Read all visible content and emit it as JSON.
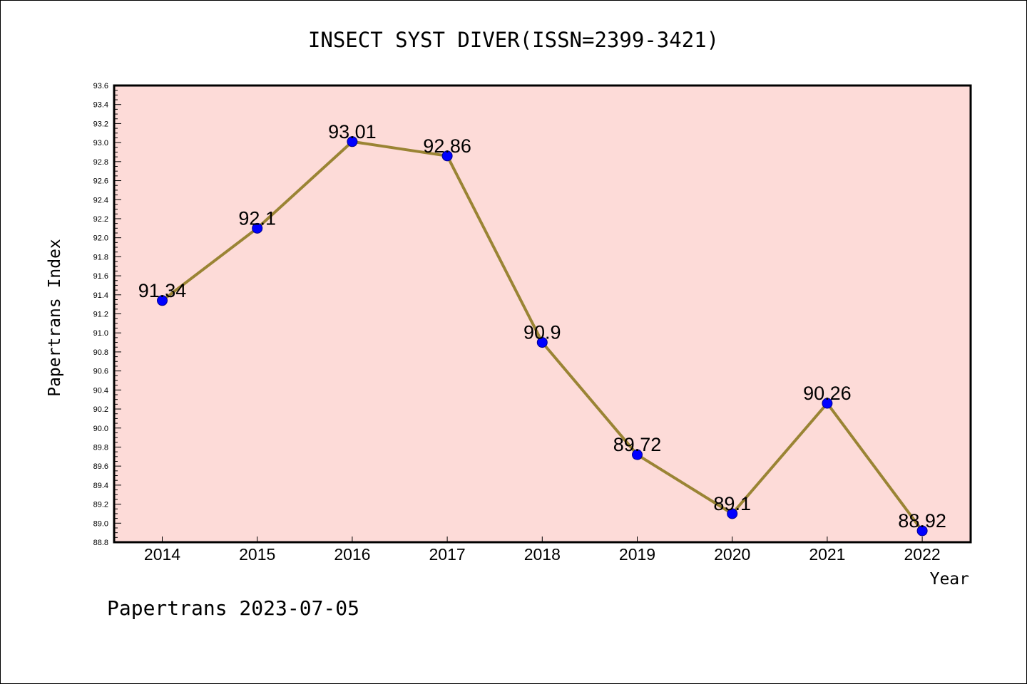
{
  "chart_data": {
    "type": "line",
    "title": "INSECT SYST DIVER(ISSN=2399-3421)",
    "xlabel": "Year",
    "ylabel": "Papertrans Index",
    "categories": [
      "2014",
      "2015",
      "2016",
      "2017",
      "2018",
      "2019",
      "2020",
      "2021",
      "2022"
    ],
    "series": [
      {
        "values": [
          91.34,
          92.1,
          93.01,
          92.86,
          90.9,
          89.72,
          89.1,
          90.26,
          88.92
        ]
      }
    ],
    "data_labels": [
      "91.34",
      "92.1",
      "93.01",
      "92.86",
      "90.9",
      "89.72",
      "89.1",
      "90.26",
      "88.92"
    ],
    "yticks": [
      "88.8",
      "89.0",
      "89.2",
      "89.4",
      "89.6",
      "89.8",
      "90.0",
      "90.2",
      "90.4",
      "90.6",
      "90.8",
      "91.0",
      "91.2",
      "91.4",
      "91.6",
      "91.8",
      "92.0",
      "92.2",
      "92.4",
      "92.6",
      "92.8",
      "93.0",
      "93.2",
      "93.4",
      "93.6"
    ],
    "ylim": [
      88.8,
      93.6
    ],
    "grid": false,
    "colors": {
      "plot_background": "#fddbd8",
      "line": "#9a8434",
      "marker": "#0000ff"
    }
  },
  "footer": "Papertrans 2023-07-05"
}
